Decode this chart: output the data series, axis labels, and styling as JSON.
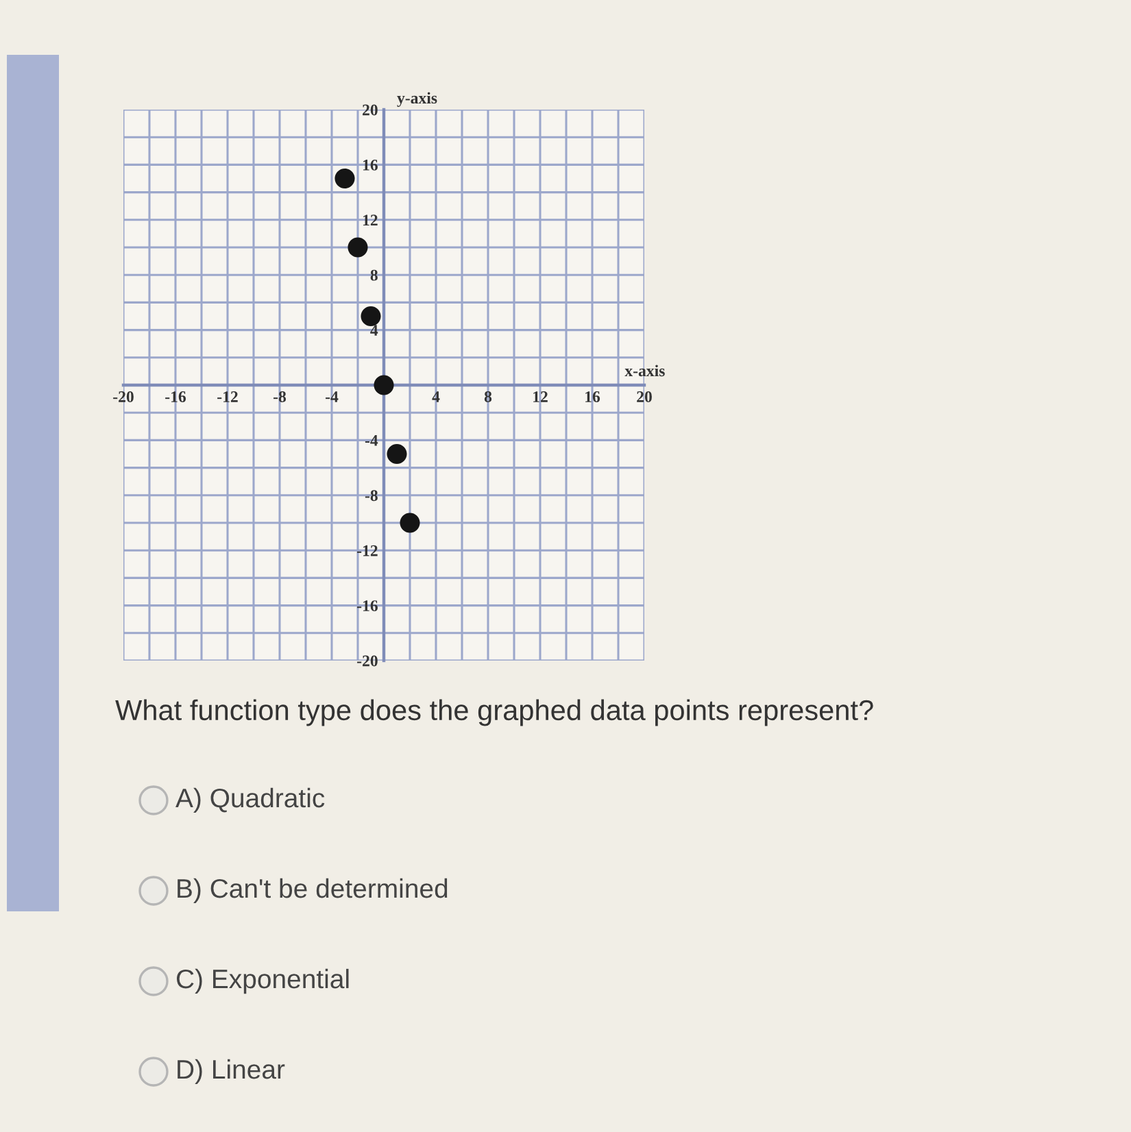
{
  "chart_data": {
    "type": "scatter",
    "xlabel": "x-axis",
    "ylabel": "y-axis",
    "x": [
      -3,
      -2,
      -1,
      0,
      1,
      2
    ],
    "values": [
      15,
      10,
      5,
      0,
      -5,
      -10
    ],
    "color": "#151515",
    "marker": "circle",
    "xlim": [
      -20,
      20
    ],
    "ylim": [
      -20,
      20
    ],
    "xticks": [
      -20,
      {
        "value": -18,
        "label": null
      },
      -16,
      {
        "value": -14,
        "label": null
      },
      -12,
      {
        "value": -10,
        "label": null
      },
      -8,
      {
        "value": -6,
        "label": null
      },
      -4,
      {
        "value": -2,
        "label": null
      },
      {
        "value": 0,
        "label": null
      },
      {
        "value": 2,
        "label": null
      },
      4,
      {
        "value": 6,
        "label": null
      },
      8,
      {
        "value": 10,
        "label": null
      },
      12,
      {
        "value": 14,
        "label": null
      },
      16,
      {
        "value": 18,
        "label": null
      },
      20
    ],
    "yticks": [
      -20,
      {
        "value": -18,
        "label": null
      },
      -16,
      {
        "value": -14,
        "label": null
      },
      -12,
      {
        "value": -10,
        "label": null
      },
      -8,
      {
        "value": -6,
        "label": null
      },
      -4,
      {
        "value": -2,
        "label": null
      },
      {
        "value": 0,
        "label": null
      },
      {
        "value": 2,
        "label": null
      },
      4,
      {
        "value": 6,
        "label": null
      },
      8,
      {
        "value": 10,
        "label": null
      },
      12,
      {
        "value": 14,
        "label": null
      },
      16,
      {
        "value": 18,
        "label": null
      },
      20
    ],
    "grid": true,
    "annotations": [
      "What function type does the graphed data points represent?",
      "A) Quadratic",
      "B) Can't be determined",
      "C) Exponential",
      "D) Linear"
    ]
  }
}
